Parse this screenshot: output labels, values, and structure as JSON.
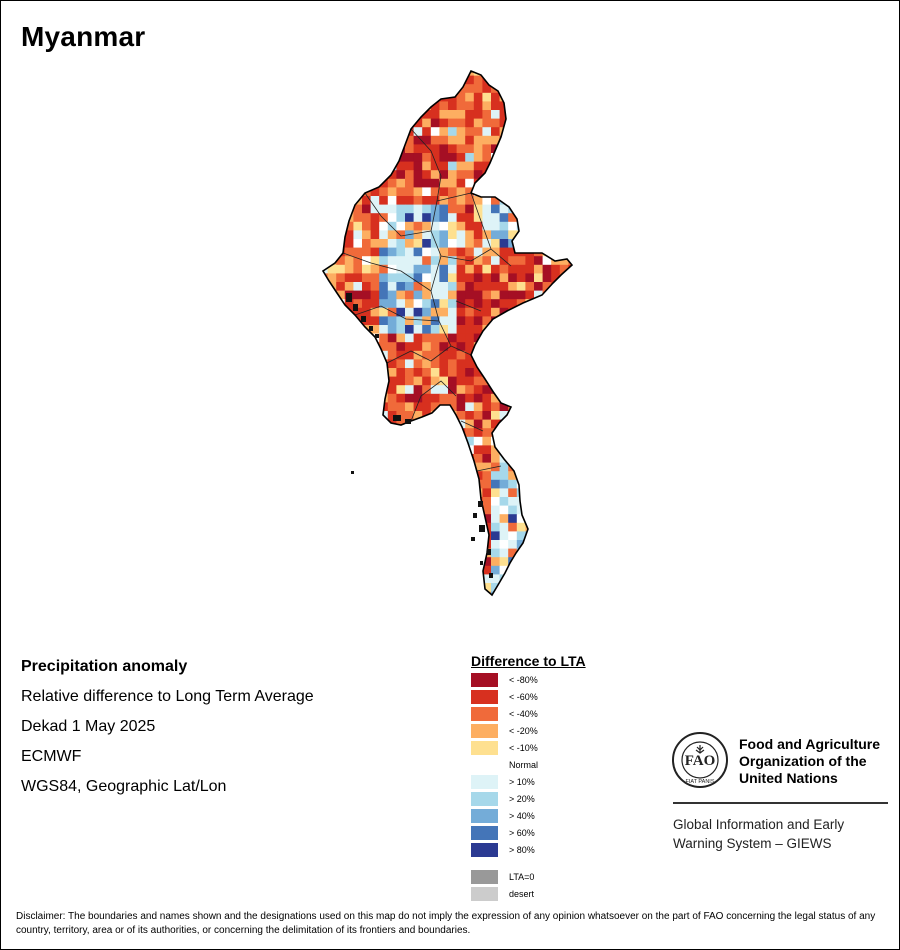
{
  "title": "Myanmar",
  "info": {
    "heading": "Precipitation anomaly",
    "lines": [
      "Relative difference to Long Term Average",
      "Dekad 1 May 2025",
      "ECMWF",
      "WGS84, Geographic Lat/Lon"
    ]
  },
  "legend": {
    "title": "Difference to LTA",
    "items": [
      {
        "label": "< -80%",
        "color": "#a50f24"
      },
      {
        "label": "< -60%",
        "color": "#d7301f"
      },
      {
        "label": "< -40%",
        "color": "#f06a3a"
      },
      {
        "label": "< -20%",
        "color": "#fdae61"
      },
      {
        "label": "< -10%",
        "color": "#fee090"
      },
      {
        "label": "Normal",
        "color": "#ffffff"
      },
      {
        "label": "> 10%",
        "color": "#def3f7"
      },
      {
        "label": "> 20%",
        "color": "#a6d8ea"
      },
      {
        "label": "> 40%",
        "color": "#74acd8"
      },
      {
        "label": "> 60%",
        "color": "#4475b8"
      },
      {
        "label": "> 80%",
        "color": "#2b3a92"
      },
      {
        "label": "LTA=0",
        "color": "#999999"
      },
      {
        "label": "desert",
        "color": "#cccccc"
      }
    ]
  },
  "organization": {
    "name_line1": "Food and Agriculture",
    "name_line2": "Organization of the",
    "name_line3": "United Nations",
    "logo_text": "FAO",
    "logo_motto": "FIAT PANIS",
    "system_line1": "Global Information and Early",
    "system_line2": "Warning System – GIEWS"
  },
  "disclaimer": "Disclaimer: The boundaries and names shown and the designations used on this map do not imply the expression of any opinion whatsoever on the part of FAO concerning the legal status of any country, territory, area or of its authorities, or concerning the delimitation of its frontiers and boundaries."
}
